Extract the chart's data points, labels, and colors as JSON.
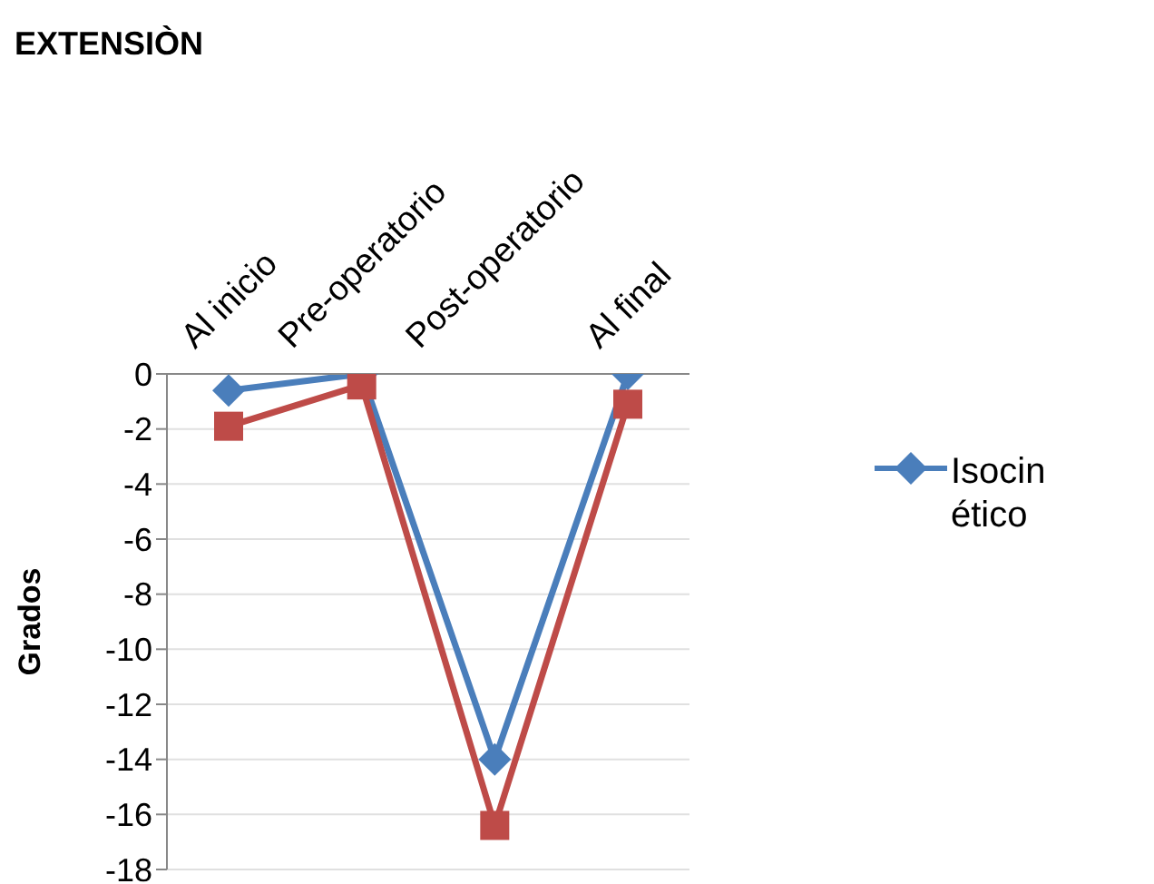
{
  "chart_data": {
    "type": "line",
    "title": "EXTENSIÒN",
    "ylabel": "Grados",
    "categories": [
      "Al inicio",
      "Pre-operatorio",
      "Post-operatorio",
      "Al final"
    ],
    "series": [
      {
        "name": "Isocinético",
        "color": "#4a7ebb",
        "marker": "diamond",
        "values": [
          -0.6,
          0,
          -14,
          0
        ]
      },
      {
        "color": "#be4b48",
        "marker": "square",
        "values": [
          -1.9,
          -0.4,
          -16.4,
          -1.1
        ]
      }
    ],
    "ylim": [
      -18,
      0
    ],
    "yticks": [
      -18,
      -16,
      -14,
      -12,
      -10,
      -8,
      -6,
      -4,
      -2,
      0
    ],
    "grid": "y",
    "legend": "right"
  }
}
